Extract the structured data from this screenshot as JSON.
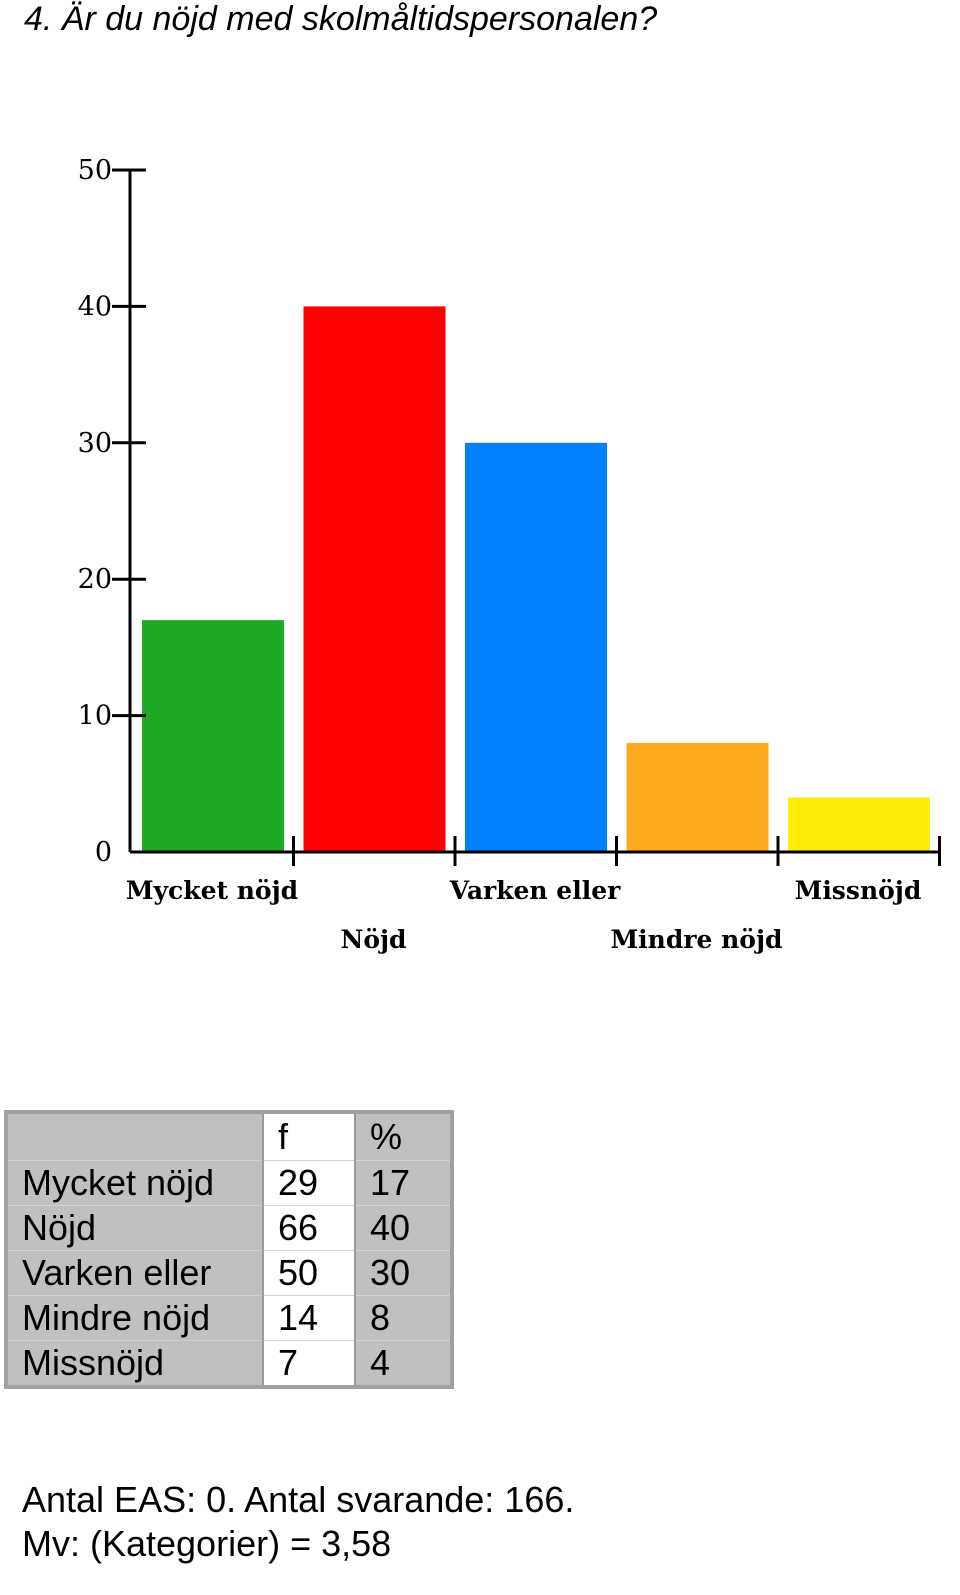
{
  "title": "4. Är du nöjd med skolmåltidspersonalen?",
  "chart_data": {
    "type": "bar",
    "categories": [
      "Mycket nöjd",
      "Nöjd",
      "Varken eller",
      "Mindre nöjd",
      "Missnöjd"
    ],
    "values": [
      17,
      40,
      30,
      8,
      4
    ],
    "colors": [
      "#1faa26",
      "#ff0000",
      "#0080ff",
      "#ffaa1e",
      "#ffec0a"
    ],
    "ylim": [
      0,
      50
    ],
    "yticks": [
      0,
      10,
      20,
      30,
      40,
      50
    ],
    "grid": false,
    "legend": "none"
  },
  "table": {
    "headers": [
      "",
      "f",
      "%"
    ],
    "rows": [
      [
        "Mycket nöjd",
        "29",
        "17"
      ],
      [
        "Nöjd",
        "66",
        "40"
      ],
      [
        "Varken eller",
        "50",
        "30"
      ],
      [
        "Mindre nöjd",
        "14",
        "8"
      ],
      [
        "Missnöjd",
        "7",
        "4"
      ]
    ]
  },
  "footer": {
    "line1": "Antal EAS: 0. Antal svarande:  166.",
    "line2": "Mv: (Kategorier) = 3,58"
  }
}
